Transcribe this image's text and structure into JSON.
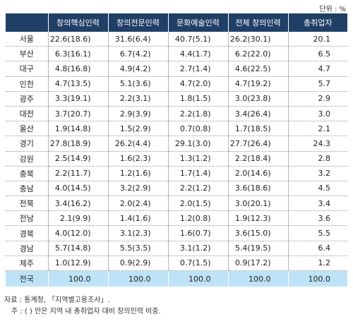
{
  "unit_label": "단위 : %",
  "headers": [
    "",
    "창의핵심인력",
    "창의전문인력",
    "문화예술인력",
    "전체 창의인력",
    "총취업자"
  ],
  "rows": [
    [
      "서울",
      "22.6(18.6)",
      "31.6(6.4)",
      "40.7(5.1)",
      "26.2(30.1)",
      "20.1"
    ],
    [
      "부산",
      "6.3(16.1)",
      "6.7(4.2)",
      "4.4(1.7)",
      "6.2(22.0)",
      "6.5"
    ],
    [
      "대구",
      "4.8(16.8)",
      "4.9(4.2)",
      "2.7(1.4)",
      "4.6(22.5)",
      "4.7"
    ],
    [
      "인천",
      "4.7(13.5)",
      "5.1(3.6)",
      "4.7(2.0)",
      "4.7(19.2)",
      "5.7"
    ],
    [
      "광주",
      "3.3(19.1)",
      "2.2(3.1)",
      "1.8(1.5)",
      "3.0(23.8)",
      "2.9"
    ],
    [
      "대전",
      "3.7(20.7)",
      "2.9(3.9)",
      "2.2(1.8)",
      "3.4(26.4)",
      "3.0"
    ],
    [
      "울산",
      "1.9(14.8)",
      "1.5(2.9)",
      "0.7(0.8)",
      "1.7(18.5)",
      "2.1"
    ],
    [
      "경기",
      "27.8(18.9)",
      "26.2(4.4)",
      "29.1(3.0)",
      "27.7(26.4)",
      "24.3"
    ],
    [
      "강원",
      "2.5(14.9)",
      "1.6(2.3)",
      "1.3(1.2)",
      "2.2(18.4)",
      "2.8"
    ],
    [
      "충북",
      "2.2(11.7)",
      "1.2(1.6)",
      "1.7(1.4)",
      "2.0(14.6)",
      "3.2"
    ],
    [
      "충남",
      "4.0(14.5)",
      "3.2(2.9)",
      "2.2(1.2)",
      "3.6(18.6)",
      "4.5"
    ],
    [
      "전북",
      "3.4(16.2)",
      "2.0(2.4)",
      "2.0(1.5)",
      "3.0(20.1)",
      "3.4"
    ],
    [
      "전남",
      "2.1(9.9)",
      "1.4(1.6)",
      "1.2(0.8)",
      "1.9(12.3)",
      "3.6"
    ],
    [
      "경북",
      "4.0(12.0)",
      "3.1(2.3)",
      "1.6(0.7)",
      "3.6(15.0)",
      "5.5"
    ],
    [
      "경남",
      "5.7(14.8)",
      "5.5(3.5)",
      "3.1(1.2)",
      "5.4(19.5)",
      "6.4"
    ],
    [
      "제주",
      "1.0(12.9)",
      "0.9(2.9)",
      "0.7(1.5)",
      "0.9(17.2)",
      "1.2"
    ]
  ],
  "total_row": [
    "전국",
    "100.0",
    "100.0",
    "100.0",
    "100.0",
    "100.0"
  ],
  "source": "자료 : 통계청, 「지역별고용조사」.",
  "note": "주 : ( ) 안은 지역 내 총취업자 대비 창의인력 비중."
}
